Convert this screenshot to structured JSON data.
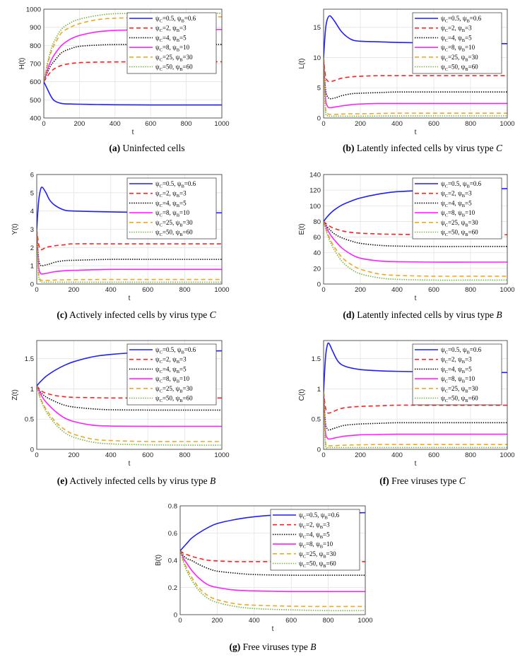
{
  "chart_data": [
    {
      "id": "a",
      "type": "line",
      "ylabel": "H(t)",
      "xlabel": "t",
      "xlim": [
        0,
        1000
      ],
      "ylim": [
        400,
        1000
      ],
      "yticks": [
        400,
        500,
        600,
        700,
        800,
        900,
        1000
      ],
      "xticks": [
        0,
        200,
        400,
        600,
        800,
        1000
      ],
      "grid": true,
      "legend": "top-right",
      "caption": {
        "label": "(a)",
        "text": "Uninfected cells",
        "italic": ""
      },
      "x": [
        0,
        20,
        40,
        60,
        100,
        150,
        200,
        300,
        400,
        600,
        800,
        1000
      ],
      "series": [
        [
          600,
          560,
          520,
          495,
          480,
          477,
          476,
          474,
          473,
          472,
          472,
          472
        ],
        [
          600,
          630,
          655,
          672,
          690,
          700,
          705,
          708,
          709,
          710,
          710,
          710
        ],
        [
          600,
          650,
          690,
          715,
          760,
          782,
          795,
          802,
          805,
          806,
          806,
          806
        ],
        [
          600,
          665,
          715,
          750,
          800,
          835,
          855,
          875,
          883,
          887,
          888,
          888
        ],
        [
          600,
          690,
          760,
          805,
          870,
          900,
          920,
          942,
          950,
          955,
          957,
          958
        ],
        [
          600,
          700,
          775,
          825,
          890,
          925,
          945,
          965,
          975,
          977,
          978,
          978
        ]
      ]
    },
    {
      "id": "b",
      "type": "line",
      "ylabel": "L(t)",
      "xlabel": "t",
      "xlim": [
        0,
        1000
      ],
      "ylim": [
        0,
        18
      ],
      "yticks": [
        0,
        5,
        10,
        15
      ],
      "xticks": [
        0,
        200,
        400,
        600,
        800,
        1000
      ],
      "grid": true,
      "legend": "top-right",
      "caption": {
        "label": "(b)",
        "text": "Latently infected cells by virus type ",
        "italic": "C"
      },
      "x": [
        0,
        10,
        20,
        35,
        60,
        100,
        150,
        200,
        300,
        400,
        600,
        1000
      ],
      "series": [
        [
          10,
          14.5,
          16.3,
          16.9,
          16.0,
          14.2,
          13.0,
          12.7,
          12.6,
          12.5,
          12.4,
          12.3
        ],
        [
          10,
          7.0,
          6.2,
          6.0,
          6.2,
          6.6,
          6.8,
          6.9,
          7.0,
          7.0,
          7.0,
          7.0
        ],
        [
          10,
          5.0,
          3.6,
          3.2,
          3.3,
          3.7,
          4.0,
          4.1,
          4.2,
          4.3,
          4.3,
          4.3
        ],
        [
          10,
          3.5,
          2.0,
          1.7,
          1.8,
          2.0,
          2.2,
          2.3,
          2.4,
          2.4,
          2.4,
          2.4
        ],
        [
          10,
          2.0,
          0.8,
          0.6,
          0.6,
          0.65,
          0.7,
          0.7,
          0.75,
          0.8,
          0.8,
          0.8
        ],
        [
          10,
          1.5,
          0.4,
          0.3,
          0.3,
          0.3,
          0.3,
          0.3,
          0.32,
          0.33,
          0.35,
          0.35
        ]
      ]
    },
    {
      "id": "c",
      "type": "line",
      "ylabel": "Y(t)",
      "xlabel": "t",
      "xlim": [
        0,
        1000
      ],
      "ylim": [
        0,
        6
      ],
      "yticks": [
        0,
        1,
        2,
        3,
        4,
        5,
        6
      ],
      "xticks": [
        0,
        200,
        400,
        600,
        800,
        1000
      ],
      "grid": true,
      "legend": "top-right",
      "caption": {
        "label": "(c)",
        "text": "Actively infected cells by virus type ",
        "italic": "C"
      },
      "x": [
        0,
        10,
        20,
        30,
        50,
        70,
        100,
        150,
        200,
        400,
        600,
        1000
      ],
      "series": [
        [
          3,
          4.5,
          5.15,
          5.3,
          5.0,
          4.6,
          4.3,
          4.05,
          4.0,
          3.95,
          3.92,
          3.9
        ],
        [
          3,
          2.2,
          1.9,
          1.9,
          2.0,
          2.05,
          2.1,
          2.15,
          2.2,
          2.2,
          2.2,
          2.2
        ],
        [
          3,
          1.4,
          1.05,
          1.0,
          1.05,
          1.1,
          1.2,
          1.28,
          1.3,
          1.35,
          1.35,
          1.35
        ],
        [
          3,
          1.0,
          0.6,
          0.55,
          0.58,
          0.62,
          0.68,
          0.73,
          0.75,
          0.8,
          0.8,
          0.8
        ],
        [
          3,
          0.6,
          0.25,
          0.2,
          0.2,
          0.2,
          0.22,
          0.23,
          0.24,
          0.25,
          0.25,
          0.25
        ],
        [
          3,
          0.5,
          0.15,
          0.1,
          0.1,
          0.1,
          0.1,
          0.1,
          0.1,
          0.1,
          0.1,
          0.1
        ]
      ]
    },
    {
      "id": "d",
      "type": "line",
      "ylabel": "E(t)",
      "xlabel": "t",
      "xlim": [
        0,
        1000
      ],
      "ylim": [
        0,
        140
      ],
      "yticks": [
        0,
        20,
        40,
        60,
        80,
        100,
        120,
        140
      ],
      "xticks": [
        0,
        200,
        400,
        600,
        800,
        1000
      ],
      "grid": true,
      "legend": "top-right",
      "caption": {
        "label": "(d)",
        "text": "Latently infected cells by virus type ",
        "italic": "B"
      },
      "x": [
        0,
        20,
        40,
        60,
        100,
        150,
        200,
        300,
        400,
        600,
        800,
        1000
      ],
      "series": [
        [
          80,
          86,
          91,
          95,
          101,
          106,
          110,
          115,
          118,
          120,
          121,
          122
        ],
        [
          80,
          76,
          73,
          71,
          68,
          66,
          65,
          64,
          63.5,
          63,
          63,
          63
        ],
        [
          80,
          73,
          68,
          64,
          59,
          55,
          52,
          49.5,
          48.5,
          48,
          48,
          48
        ],
        [
          80,
          70,
          62,
          56,
          46,
          38,
          33,
          29.5,
          28.5,
          28,
          28,
          28
        ],
        [
          80,
          66,
          55,
          47,
          34,
          25,
          19,
          13,
          11,
          10,
          10,
          10
        ],
        [
          80,
          64,
          52,
          43,
          29,
          19,
          13,
          8,
          6,
          5,
          5,
          5
        ]
      ]
    },
    {
      "id": "e",
      "type": "line",
      "ylabel": "Z(t)",
      "xlabel": "t",
      "xlim": [
        0,
        1000
      ],
      "ylim": [
        0,
        1.8
      ],
      "yticks": [
        0,
        0.5,
        1,
        1.5
      ],
      "xticks": [
        0,
        200,
        400,
        600,
        800,
        1000
      ],
      "grid": true,
      "legend": "top-right",
      "caption": {
        "label": "(e)",
        "text": "Actively infected cells by virus type ",
        "italic": "B"
      },
      "x": [
        0,
        20,
        40,
        60,
        100,
        150,
        200,
        300,
        400,
        600,
        800,
        1000
      ],
      "series": [
        [
          1.05,
          1.12,
          1.18,
          1.23,
          1.31,
          1.39,
          1.45,
          1.53,
          1.57,
          1.61,
          1.62,
          1.63
        ],
        [
          1.05,
          0.98,
          0.94,
          0.92,
          0.89,
          0.87,
          0.86,
          0.855,
          0.85,
          0.85,
          0.85,
          0.85
        ],
        [
          1.05,
          0.95,
          0.89,
          0.85,
          0.79,
          0.73,
          0.7,
          0.67,
          0.655,
          0.65,
          0.65,
          0.65
        ],
        [
          1.05,
          0.92,
          0.82,
          0.75,
          0.63,
          0.52,
          0.46,
          0.4,
          0.385,
          0.38,
          0.38,
          0.38
        ],
        [
          1.05,
          0.85,
          0.72,
          0.62,
          0.46,
          0.33,
          0.25,
          0.17,
          0.145,
          0.13,
          0.13,
          0.13
        ],
        [
          1.05,
          0.83,
          0.69,
          0.58,
          0.42,
          0.28,
          0.2,
          0.12,
          0.09,
          0.075,
          0.07,
          0.07
        ]
      ]
    },
    {
      "id": "f",
      "type": "line",
      "ylabel": "C(t)",
      "xlabel": "t",
      "xlim": [
        0,
        1000
      ],
      "ylim": [
        0,
        1.8
      ],
      "yticks": [
        0,
        0.5,
        1,
        1.5
      ],
      "xticks": [
        0,
        200,
        400,
        600,
        800,
        1000
      ],
      "grid": true,
      "legend": "top-right",
      "caption": {
        "label": "(f)",
        "text": "Free viruses type ",
        "italic": "C"
      },
      "x": [
        0,
        10,
        20,
        30,
        50,
        80,
        120,
        200,
        300,
        400,
        600,
        1000
      ],
      "series": [
        [
          0.95,
          1.5,
          1.72,
          1.75,
          1.62,
          1.45,
          1.37,
          1.32,
          1.3,
          1.29,
          1.28,
          1.27
        ],
        [
          0.95,
          0.7,
          0.61,
          0.6,
          0.62,
          0.66,
          0.69,
          0.71,
          0.72,
          0.73,
          0.73,
          0.73
        ],
        [
          0.95,
          0.45,
          0.34,
          0.32,
          0.34,
          0.37,
          0.4,
          0.42,
          0.43,
          0.44,
          0.44,
          0.44
        ],
        [
          0.95,
          0.3,
          0.19,
          0.17,
          0.18,
          0.2,
          0.22,
          0.24,
          0.245,
          0.25,
          0.25,
          0.25
        ],
        [
          0.95,
          0.15,
          0.07,
          0.06,
          0.06,
          0.065,
          0.07,
          0.075,
          0.08,
          0.08,
          0.08,
          0.08
        ],
        [
          0.95,
          0.1,
          0.04,
          0.03,
          0.03,
          0.03,
          0.03,
          0.03,
          0.03,
          0.03,
          0.03,
          0.03
        ]
      ]
    },
    {
      "id": "g",
      "type": "line",
      "ylabel": "B(t)",
      "xlabel": "t",
      "xlim": [
        0,
        1000
      ],
      "ylim": [
        0,
        0.8
      ],
      "yticks": [
        0,
        0.2,
        0.4,
        0.6,
        0.8
      ],
      "xticks": [
        0,
        200,
        400,
        600,
        800,
        1000
      ],
      "grid": true,
      "legend": "top-right",
      "caption": {
        "label": "(g)",
        "text": "Free viruses type ",
        "italic": "B"
      },
      "x": [
        0,
        20,
        40,
        60,
        100,
        150,
        200,
        300,
        400,
        600,
        800,
        1000
      ],
      "series": [
        [
          0.47,
          0.5,
          0.53,
          0.56,
          0.6,
          0.64,
          0.67,
          0.7,
          0.72,
          0.74,
          0.745,
          0.75
        ],
        [
          0.47,
          0.45,
          0.44,
          0.43,
          0.415,
          0.4,
          0.395,
          0.39,
          0.39,
          0.39,
          0.39,
          0.39
        ],
        [
          0.47,
          0.43,
          0.41,
          0.4,
          0.37,
          0.34,
          0.32,
          0.305,
          0.295,
          0.29,
          0.29,
          0.29
        ],
        [
          0.47,
          0.41,
          0.37,
          0.33,
          0.27,
          0.22,
          0.2,
          0.18,
          0.175,
          0.17,
          0.17,
          0.17
        ],
        [
          0.47,
          0.39,
          0.33,
          0.28,
          0.2,
          0.14,
          0.11,
          0.08,
          0.07,
          0.062,
          0.06,
          0.06
        ],
        [
          0.47,
          0.38,
          0.31,
          0.26,
          0.18,
          0.12,
          0.09,
          0.06,
          0.045,
          0.035,
          0.03,
          0.03
        ]
      ]
    }
  ],
  "legend": {
    "symbol": "ψ",
    "sub_c": "C",
    "sub_b": "B",
    "entries": [
      {
        "c": "0.5",
        "b": "0.6",
        "color": "#1f1fff",
        "dash": "solid"
      },
      {
        "c": "2",
        "b": "3",
        "color": "#ff2020",
        "dash": "dashed"
      },
      {
        "c": "4",
        "b": "5",
        "color": "#000000",
        "dash": "dotted"
      },
      {
        "c": "8",
        "b": "10",
        "color": "#ff20ff",
        "dash": "solid"
      },
      {
        "c": "25",
        "b": "30",
        "color": "#f0a820",
        "dash": "dashed"
      },
      {
        "c": "50",
        "b": "60",
        "color": "#70b030",
        "dash": "dotted"
      }
    ]
  }
}
